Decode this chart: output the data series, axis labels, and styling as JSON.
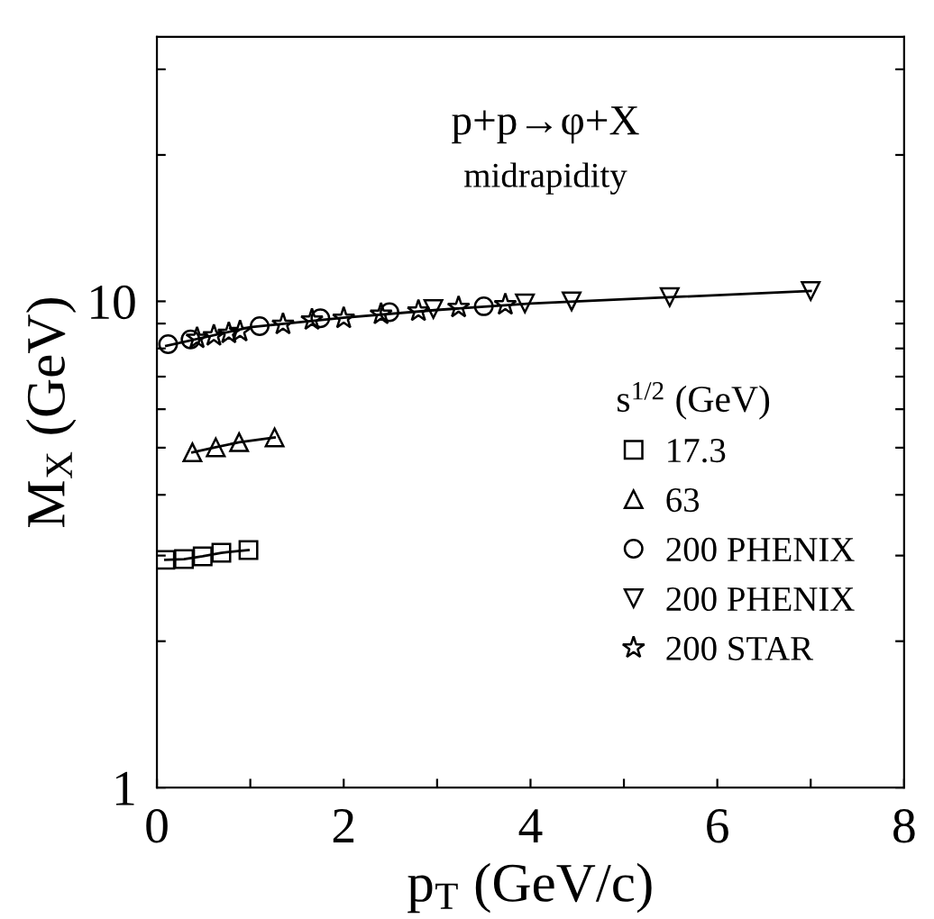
{
  "chart_data": {
    "type": "scatter",
    "title": "p+p→φ+X",
    "subtitle": "midrapidity",
    "xlabel": "p$_{T}$ (GeV/c)",
    "ylabel": "M$_{X}$ (GeV)",
    "legend_title": "s$^{1/2}$ (GeV)",
    "log": "y",
    "xlim": [
      0,
      8
    ],
    "ylim": [
      1,
      35
    ],
    "xticks": [
      0,
      {
        "value": 1,
        "label": null
      },
      2,
      {
        "value": 3,
        "label": null
      },
      4,
      {
        "value": 5,
        "label": null
      },
      6,
      {
        "value": 7,
        "label": null
      },
      8
    ],
    "yticks": [
      1,
      {
        "value": 2,
        "label": null
      },
      {
        "value": 3,
        "label": null
      },
      {
        "value": 4,
        "label": null
      },
      {
        "value": 5,
        "label": null
      },
      {
        "value": 6,
        "label": null
      },
      {
        "value": 7,
        "label": null
      },
      {
        "value": 8,
        "label": null
      },
      {
        "value": 9,
        "label": null
      },
      10,
      {
        "value": 20,
        "label": null
      },
      {
        "value": 30,
        "label": null
      }
    ],
    "grid": false,
    "legend": "right",
    "series": [
      {
        "name": "17.3",
        "type": "line",
        "marker": "square",
        "color": "#000000",
        "x": [
          0.09,
          0.29,
          0.49,
          0.69,
          0.98
        ],
        "values": [
          2.94,
          2.95,
          2.99,
          3.04,
          3.08
        ]
      },
      {
        "name": "63",
        "type": "line",
        "marker": "triangle",
        "color": "#000000",
        "x": [
          0.38,
          0.63,
          0.88,
          1.26
        ],
        "values": [
          4.89,
          5.01,
          5.13,
          5.25
        ]
      },
      {
        "name": "200 PHENIX",
        "marker": "circle",
        "color": "#000000",
        "x": [
          0.12,
          0.36,
          1.1,
          1.75,
          2.49,
          3.5
        ],
        "values": [
          8.16,
          8.35,
          8.89,
          9.23,
          9.5,
          9.77
        ]
      },
      {
        "name": "200 PHENIX",
        "marker": "triangle_down",
        "color": "#000000",
        "x": [
          2.96,
          3.94,
          4.44,
          5.49,
          7.0
        ],
        "values": [
          9.64,
          9.9,
          10.0,
          10.2,
          10.5
        ]
      },
      {
        "name": "200 STAR",
        "marker": "star",
        "color": "#000000",
        "x": [
          0.43,
          0.61,
          0.77,
          0.89,
          1.35,
          1.66,
          2.0,
          2.4,
          2.8,
          3.23,
          3.73
        ],
        "values": [
          8.4,
          8.5,
          8.6,
          8.67,
          8.97,
          9.16,
          9.23,
          9.41,
          9.55,
          9.72,
          9.84
        ]
      },
      {
        "type": "line",
        "marker": "none",
        "color": "#000000",
        "x": [
          0.1,
          1.0,
          2.0,
          3.0,
          4.0,
          5.0,
          7.0
        ],
        "values": [
          8.1,
          8.85,
          9.25,
          9.6,
          9.9,
          10.1,
          10.5
        ]
      }
    ]
  }
}
